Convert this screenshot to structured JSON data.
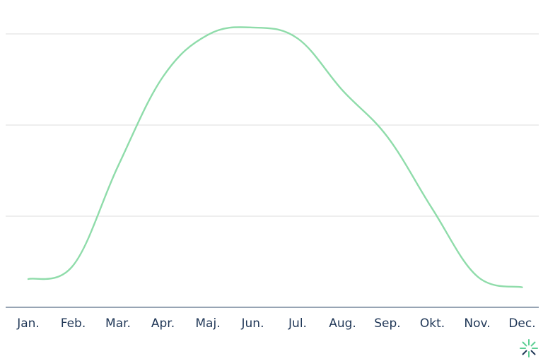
{
  "chart_data": {
    "type": "line",
    "title": "",
    "xlabel": "",
    "ylabel": "",
    "categories": [
      "Jan.",
      "Feb.",
      "Mar.",
      "Apr.",
      "Maj.",
      "Jun.",
      "Jul.",
      "Aug.",
      "Sep.",
      "Okt.",
      "Nov.",
      "Dec."
    ],
    "series": [
      {
        "values": [
          0.31,
          0.46,
          1.55,
          2.53,
          2.99,
          3.07,
          2.95,
          2.38,
          1.87,
          1.08,
          0.34,
          0.22
        ]
      }
    ],
    "ylim": [
      0,
      3
    ],
    "yticks": [
      0,
      1,
      2,
      3
    ],
    "grid": true,
    "legend": "none",
    "y_tick_labels_visible": false
  },
  "colors": {
    "line": "#8fdcaa",
    "gridline": "#dcdcdc",
    "baseline": "#2f4a6a",
    "tick_text": "#1f3656",
    "logo_accent": "#5ccf94",
    "logo_dark": "#1f3656"
  },
  "logo": {
    "icon": "sunburst-logo-icon"
  }
}
